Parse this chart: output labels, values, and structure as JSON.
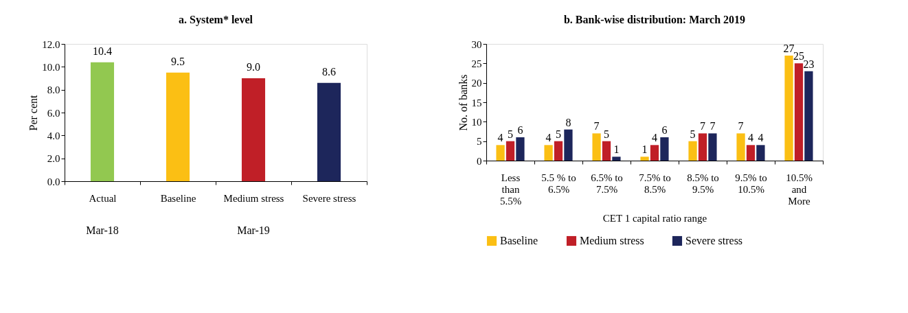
{
  "chart_data": [
    {
      "type": "bar",
      "title": "a. System* level",
      "ylabel": "Per cent",
      "categories": [
        "Actual",
        "Baseline",
        "Medium stress",
        "Severe stress"
      ],
      "values": [
        10.4,
        9.5,
        9.0,
        8.6
      ],
      "colors": [
        "#92c850",
        "#fbbf14",
        "#c01f27",
        "#1d265b"
      ],
      "value_labels": [
        "10.4",
        "9.5",
        "9.0",
        "8.6"
      ],
      "ylim": [
        0,
        12
      ],
      "yticks": [
        {
          "value": 0,
          "label": "0.0"
        },
        {
          "value": 2,
          "label": "2.0"
        },
        {
          "value": 4,
          "label": "4.0"
        },
        {
          "value": 6,
          "label": "6.0"
        },
        {
          "value": 8,
          "label": "8.0"
        },
        {
          "value": 10,
          "label": "10.0"
        },
        {
          "value": 12,
          "label": "12.0"
        }
      ],
      "annotations": [
        "Mar-18",
        "Mar-19"
      ],
      "grid": false
    },
    {
      "type": "bar",
      "title": "b. Bank-wise distribution: March 2019",
      "xlabel": "CET 1 capital ratio range",
      "ylabel": "No. of banks",
      "categories": [
        "Less\nthan\n5.5%",
        "5.5 % to\n6.5%",
        "6.5% to\n7.5%",
        "7.5% to\n8.5%",
        "8.5% to\n9.5%",
        "9.5% to\n10.5%",
        "10.5%\nand\nMore"
      ],
      "series": [
        {
          "name": "Baseline",
          "color": "#fbbf14",
          "values": [
            4,
            4,
            7,
            1,
            5,
            7,
            27
          ]
        },
        {
          "name": "Medium stress",
          "color": "#c01f27",
          "values": [
            5,
            5,
            5,
            4,
            7,
            4,
            25
          ]
        },
        {
          "name": "Severe stress",
          "color": "#1d265b",
          "values": [
            6,
            8,
            1,
            6,
            7,
            4,
            23
          ]
        }
      ],
      "ylim": [
        0,
        30
      ],
      "yticks": [
        0,
        5,
        10,
        15,
        20,
        25,
        30
      ],
      "data_labels": true,
      "grid": false,
      "legend": "bottom"
    }
  ]
}
